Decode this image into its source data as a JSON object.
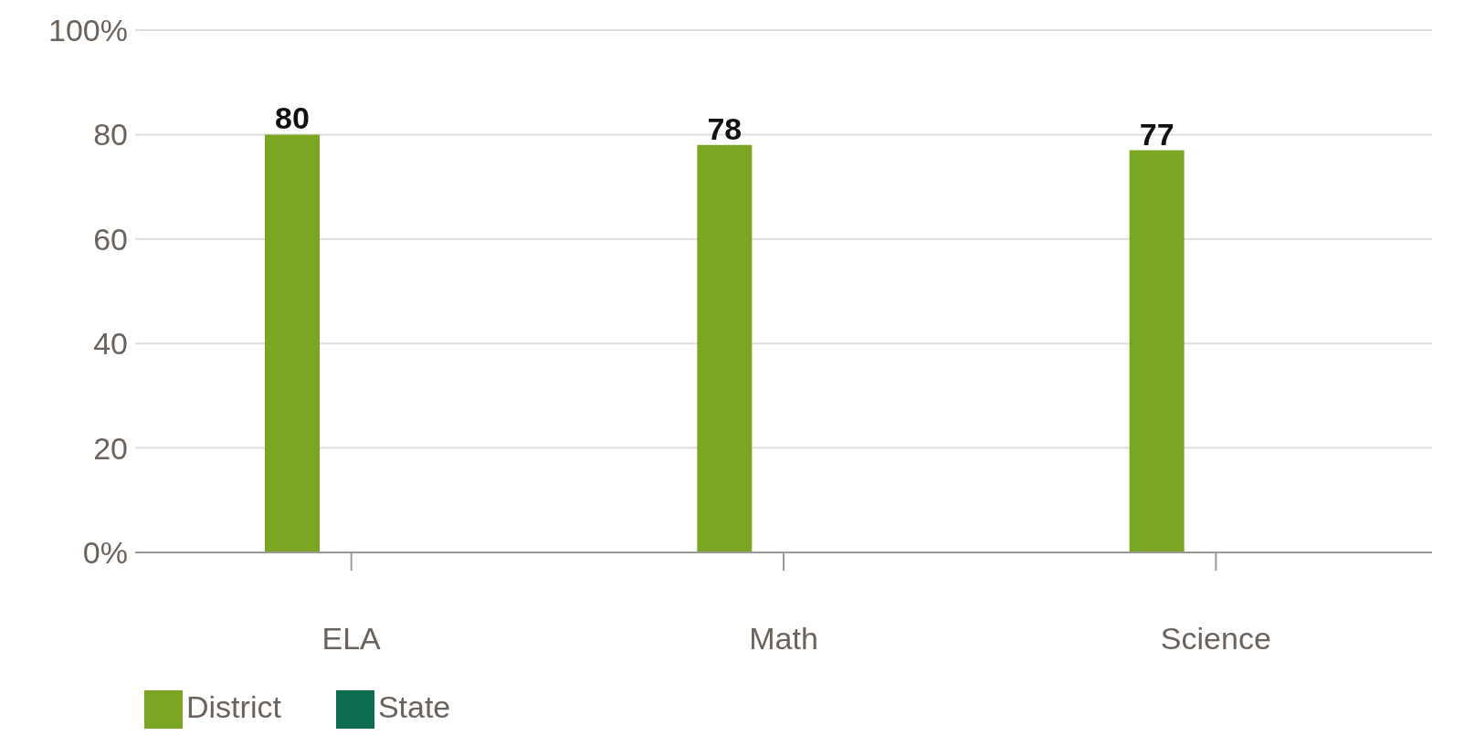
{
  "chart_data": {
    "type": "bar",
    "categories": [
      "ELA",
      "Math",
      "Science"
    ],
    "series": [
      {
        "name": "District",
        "color": "#7aa624",
        "values": [
          80,
          78,
          77
        ],
        "value_labels": [
          "80",
          "78",
          "77"
        ]
      },
      {
        "name": "State",
        "color": "#0d6b4f",
        "values": [
          0,
          0,
          0
        ],
        "value_labels": [
          null,
          null,
          null
        ]
      }
    ],
    "ylim": [
      0,
      100
    ],
    "yticks": [
      {
        "value": 0,
        "label": "0%"
      },
      20,
      40,
      60,
      80,
      {
        "value": 100,
        "label": "100%"
      }
    ],
    "grid": "y",
    "legend": "bottom left"
  }
}
